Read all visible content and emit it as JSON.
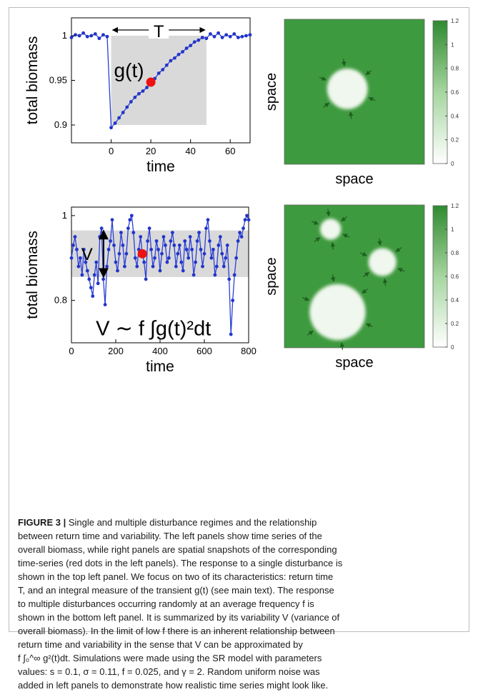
{
  "chart_data": [
    {
      "type": "line",
      "panel": "top-left",
      "xlabel": "time",
      "ylabel": "total biomass",
      "xlim": [
        -20,
        70
      ],
      "ylim": [
        0.88,
        1.02
      ],
      "xticks": [
        "0",
        "20",
        "40",
        "60"
      ],
      "yticks": [
        "0.9",
        "0.95",
        "1"
      ],
      "annotations": [
        "T",
        "g(t)"
      ],
      "highlight_point": {
        "x": 20,
        "y": 0.948
      },
      "shaded_region": {
        "x": [
          0,
          48
        ],
        "y": [
          0.9,
          1.0
        ]
      },
      "series": [
        {
          "x": [
            -20,
            -18,
            -16,
            -14,
            -12,
            -10,
            -8,
            -6,
            -4,
            -2,
            0,
            2,
            4,
            6,
            8,
            10,
            12,
            14,
            16,
            18,
            20,
            22,
            24,
            26,
            28,
            30,
            32,
            34,
            36,
            38,
            40,
            42,
            44,
            46,
            48,
            50,
            52,
            54,
            56,
            58,
            60,
            62,
            64,
            66,
            68,
            70
          ],
          "values": [
            0.998,
            1.001,
            1.0,
            1.003,
            0.999,
            1.0,
            1.002,
            0.997,
            1.001,
            0.999,
            0.897,
            0.902,
            0.908,
            0.914,
            0.92,
            0.926,
            0.931,
            0.935,
            0.938,
            0.942,
            0.948,
            0.952,
            0.958,
            0.962,
            0.967,
            0.972,
            0.975,
            0.979,
            0.982,
            0.986,
            0.989,
            0.993,
            0.995,
            0.998,
            0.997,
            1.002,
            0.999,
            1.003,
            0.998,
            1.001,
            0.999,
            1.002,
            0.998,
            0.999,
            1.0,
            1.001
          ]
        }
      ]
    },
    {
      "type": "heatmap",
      "panel": "top-right",
      "xlabel": "space",
      "ylabel": "space",
      "colorbar_ticks": [
        "0",
        "0.2",
        "0.4",
        "0.6",
        "0.8",
        "1",
        "1.2"
      ],
      "clim": [
        0,
        1.2
      ],
      "colors": {
        "field": "#3e9a3e",
        "patch": "#f0f7ee"
      },
      "patches": [
        {
          "cx": 0.45,
          "cy": 0.48,
          "r": 0.145
        }
      ]
    },
    {
      "type": "line",
      "panel": "bottom-left",
      "xlabel": "time",
      "ylabel": "total biomass",
      "xlim": [
        0,
        800
      ],
      "ylim": [
        0.7,
        1.02
      ],
      "xticks": [
        "0",
        "200",
        "400",
        "600",
        "800"
      ],
      "yticks": [
        "0.8",
        "1"
      ],
      "annotations": [
        "V",
        "V ∼ f ∫g(t)²dt"
      ],
      "highlight_point": {
        "x": 320,
        "y": 0.91
      },
      "shaded_region": {
        "x": [
          0,
          800
        ],
        "y": [
          0.855,
          0.965
        ]
      },
      "series": [
        {
          "x": [
            0,
            8,
            16,
            24,
            32,
            40,
            48,
            56,
            64,
            72,
            80,
            88,
            96,
            104,
            112,
            120,
            128,
            136,
            144,
            152,
            160,
            168,
            176,
            184,
            192,
            200,
            208,
            216,
            224,
            232,
            240,
            248,
            256,
            264,
            272,
            280,
            288,
            296,
            304,
            312,
            320,
            328,
            336,
            344,
            352,
            360,
            368,
            376,
            384,
            392,
            400,
            408,
            416,
            424,
            432,
            440,
            448,
            456,
            464,
            472,
            480,
            488,
            496,
            504,
            512,
            520,
            528,
            536,
            544,
            552,
            560,
            568,
            576,
            584,
            592,
            600,
            608,
            616,
            624,
            632,
            640,
            648,
            656,
            664,
            672,
            680,
            688,
            696,
            704,
            712,
            720,
            728,
            736,
            744,
            752,
            760,
            768,
            776,
            784,
            792,
            800
          ],
          "values": [
            0.9,
            0.93,
            0.95,
            0.92,
            0.88,
            0.9,
            0.86,
            0.92,
            0.89,
            0.87,
            0.85,
            0.83,
            0.81,
            0.86,
            0.89,
            0.84,
            0.95,
            0.97,
            0.85,
            0.79,
            0.88,
            0.92,
            0.94,
            0.99,
            0.93,
            0.89,
            0.87,
            0.91,
            0.96,
            0.93,
            0.88,
            0.91,
            0.97,
            0.99,
            1.0,
            0.96,
            0.9,
            0.88,
            0.92,
            0.95,
            0.91,
            0.89,
            0.85,
            0.94,
            0.97,
            0.92,
            0.88,
            0.9,
            0.94,
            0.92,
            0.87,
            0.91,
            0.95,
            0.93,
            0.89,
            0.9,
            0.94,
            0.96,
            0.93,
            0.88,
            0.91,
            0.93,
            0.89,
            0.87,
            0.94,
            0.92,
            0.9,
            0.95,
            0.92,
            0.86,
            0.89,
            0.94,
            0.96,
            0.92,
            0.88,
            0.91,
            0.97,
            0.99,
            0.94,
            0.9,
            0.92,
            0.86,
            0.88,
            0.93,
            0.95,
            0.91,
            0.88,
            0.9,
            0.93,
            0.85,
            0.72,
            0.8,
            0.86,
            0.9,
            0.94,
            0.96,
            0.95,
            0.97,
            0.99,
            1.0,
            0.99
          ]
        }
      ]
    },
    {
      "type": "heatmap",
      "panel": "bottom-right",
      "xlabel": "space",
      "ylabel": "space",
      "colorbar_ticks": [
        "0",
        "0.2",
        "0.4",
        "0.6",
        "0.8",
        "1",
        "1.2"
      ],
      "clim": [
        0,
        1.2
      ],
      "colors": {
        "field": "#3e9a3e",
        "patch": "#f0f7ee"
      },
      "patches": [
        {
          "cx": 0.33,
          "cy": 0.17,
          "r": 0.075
        },
        {
          "cx": 0.7,
          "cy": 0.4,
          "r": 0.1
        },
        {
          "cx": 0.38,
          "cy": 0.75,
          "r": 0.2
        }
      ]
    }
  ],
  "caption": {
    "label": "FIGURE 3 |",
    "lines": [
      " Single and multiple disturbance regimes and the relationship",
      "between return time and variability. The left panels show time series of the",
      "overall biomass, while right panels are spatial snapshots of the corresponding",
      "time-series (red dots in the left panels). The response to a single disturbance is",
      "shown in the top left panel. We focus on two of its characteristics: return time",
      "T, and an integral measure of the transient g(t) (see main text). The response",
      "to multiple disturbances occurring randomly at an average frequency f is",
      "shown in the bottom left panel. It is summarized by its variability V (variance of",
      "overall biomass). In the limit of low f there is an inherent relationship between",
      "return time and variability in the sense that V can be approximated by",
      "f ∫₀^∞ g²(t)dt. Simulations were made using the SR model with parameters",
      "values: s = 0.1, σ = 0.11, f = 0.025, and γ = 2. Random uniform noise was",
      "added in left panels to demonstrate how realistic time series might look like."
    ]
  }
}
